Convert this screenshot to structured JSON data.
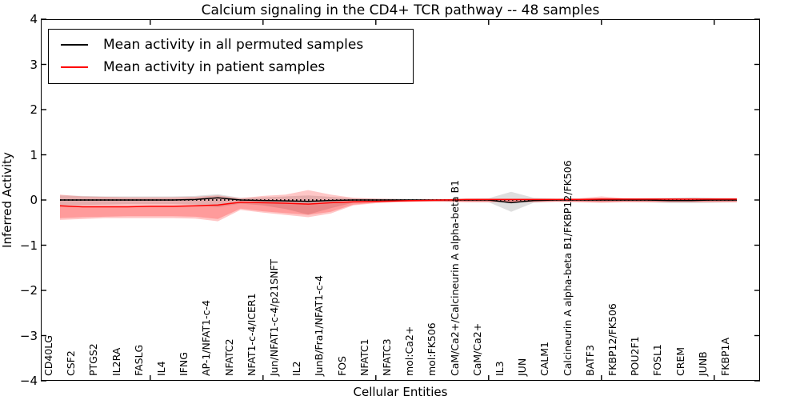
{
  "chart": {
    "title": "Calcium signaling in the CD4+ TCR pathway -- 48 samples",
    "xlabel": "Cellular Entities",
    "ylabel": "Inferred Activity"
  },
  "legend": {
    "items": [
      {
        "label": "Mean activity in all permuted samples",
        "color": "#000000"
      },
      {
        "label": "Mean activity in patient samples",
        "color": "#ff0000"
      }
    ]
  },
  "chart_data": {
    "type": "line",
    "title": "Calcium signaling in the CD4+ TCR pathway -- 48 samples",
    "xlabel": "Cellular Entities",
    "ylabel": "Inferred Activity",
    "ylim": [
      -4,
      4
    ],
    "grid": false,
    "legend_position": "upper left",
    "yticks": {
      "values": [
        4,
        3,
        2,
        1,
        0,
        -1,
        -2,
        -3,
        -4
      ],
      "labels": [
        "4",
        "3",
        "2",
        "1",
        "0",
        "−1",
        "−2",
        "−3",
        "−4"
      ]
    },
    "xtick_major_indices": [
      4,
      9,
      14,
      19,
      24,
      29
    ],
    "categories": [
      "CD40LG",
      "CSF2",
      "PTGS2",
      "IL2RA",
      "FASLG",
      "IL4",
      "IFNG",
      "AP-1/NFAT1-c-4",
      "NFATC2",
      "NFAT1-c-4/ICER1",
      "Jun/NFAT1-c-4/p21SNFT",
      "IL2",
      "JunB/Fra1/NFAT1-c-4",
      "FOS",
      "NFATC1",
      "NFATC3",
      "mol:Ca2+",
      "mol:FK506",
      "CaM/Ca2+/Calcineurin A alpha-beta B1",
      "CaM/Ca2+",
      "IL3",
      "JUN",
      "CALM1",
      "Calcineurin A alpha-beta B1/FKBP12/FK506",
      "BATF3",
      "FKBP12/FK506",
      "POU2F1",
      "FOSL1",
      "CREM",
      "JUNB",
      "FKBP1A"
    ],
    "zero_line": {
      "value": 0,
      "style": "dotted",
      "color": "#000000"
    },
    "series": [
      {
        "name": "permuted-range-band",
        "type": "band",
        "color": "rgba(0,0,0,0.13)",
        "upper": [
          0.1,
          0.09,
          0.08,
          0.08,
          0.08,
          0.08,
          0.09,
          0.13,
          0.05,
          0.06,
          0.08,
          0.1,
          0.07,
          0.04,
          0.03,
          0.03,
          0.02,
          0.02,
          0.03,
          0.04,
          0.18,
          0.05,
          0.03,
          0.03,
          0.04,
          0.03,
          0.04,
          0.05,
          0.06,
          0.05,
          0.04
        ],
        "lower": [
          -0.12,
          -0.11,
          -0.1,
          -0.09,
          -0.09,
          -0.09,
          -0.1,
          -0.16,
          -0.08,
          -0.12,
          -0.2,
          -0.32,
          -0.18,
          -0.06,
          -0.04,
          -0.03,
          -0.03,
          -0.03,
          -0.04,
          -0.05,
          -0.26,
          -0.06,
          -0.04,
          -0.04,
          -0.05,
          -0.04,
          -0.05,
          -0.07,
          -0.07,
          -0.06,
          -0.05
        ]
      },
      {
        "name": "patient-range-band-outer",
        "type": "band",
        "color": "rgba(255,0,0,0.22)",
        "upper": [
          0.12,
          0.08,
          0.07,
          0.06,
          0.06,
          0.06,
          0.07,
          0.1,
          0.04,
          0.09,
          0.12,
          0.22,
          0.12,
          0.05,
          0.03,
          0.02,
          0.02,
          0.02,
          0.03,
          0.03,
          0.03,
          0.03,
          0.03,
          0.04,
          0.08,
          0.04,
          0.03,
          0.03,
          0.03,
          0.03,
          0.04
        ],
        "lower": [
          -0.44,
          -0.42,
          -0.4,
          -0.4,
          -0.4,
          -0.4,
          -0.41,
          -0.47,
          -0.22,
          -0.28,
          -0.33,
          -0.38,
          -0.3,
          -0.12,
          -0.07,
          -0.05,
          -0.04,
          -0.04,
          -0.05,
          -0.05,
          -0.05,
          -0.05,
          -0.04,
          -0.05,
          -0.06,
          -0.05,
          -0.05,
          -0.05,
          -0.05,
          -0.05,
          -0.05
        ]
      },
      {
        "name": "patient-range-band-inner",
        "type": "band",
        "color": "rgba(255,0,0,0.22)",
        "upper": [
          -0.13,
          -0.15,
          -0.15,
          -0.15,
          -0.14,
          -0.14,
          -0.13,
          -0.11,
          -0.05,
          -0.06,
          -0.07,
          -0.09,
          -0.06,
          -0.04,
          -0.03,
          -0.02,
          -0.01,
          0.0,
          0.01,
          0.01,
          0.01,
          0.01,
          0.01,
          0.01,
          0.02,
          0.02,
          0.02,
          0.02,
          0.02,
          0.02,
          0.02
        ],
        "lower": [
          -0.4,
          -0.38,
          -0.37,
          -0.36,
          -0.36,
          -0.36,
          -0.37,
          -0.42,
          -0.19,
          -0.25,
          -0.29,
          -0.33,
          -0.26,
          -0.1,
          -0.06,
          -0.04,
          -0.03,
          -0.03,
          -0.04,
          -0.04,
          -0.04,
          -0.04,
          -0.03,
          -0.04,
          -0.05,
          -0.04,
          -0.04,
          -0.04,
          -0.04,
          -0.04,
          -0.04
        ]
      },
      {
        "name": "mean-activity-permuted",
        "type": "line",
        "color": "#000000",
        "values": [
          0,
          0,
          0,
          0,
          0,
          0,
          0.01,
          0.05,
          0,
          -0.01,
          -0.02,
          -0.03,
          -0.01,
          0,
          0,
          0,
          0,
          0,
          0,
          0,
          -0.06,
          -0.01,
          0,
          0,
          0,
          0,
          0,
          -0.01,
          -0.01,
          0,
          0
        ]
      },
      {
        "name": "mean-activity-patient",
        "type": "line",
        "color": "#ff0000",
        "values": [
          -0.13,
          -0.15,
          -0.15,
          -0.15,
          -0.14,
          -0.14,
          -0.13,
          -0.11,
          -0.05,
          -0.06,
          -0.07,
          -0.09,
          -0.06,
          -0.04,
          -0.03,
          -0.02,
          -0.01,
          0.0,
          0.01,
          0.01,
          0.01,
          0.01,
          0.01,
          0.01,
          0.02,
          0.02,
          0.02,
          0.02,
          0.02,
          0.02,
          0.02
        ]
      }
    ]
  }
}
